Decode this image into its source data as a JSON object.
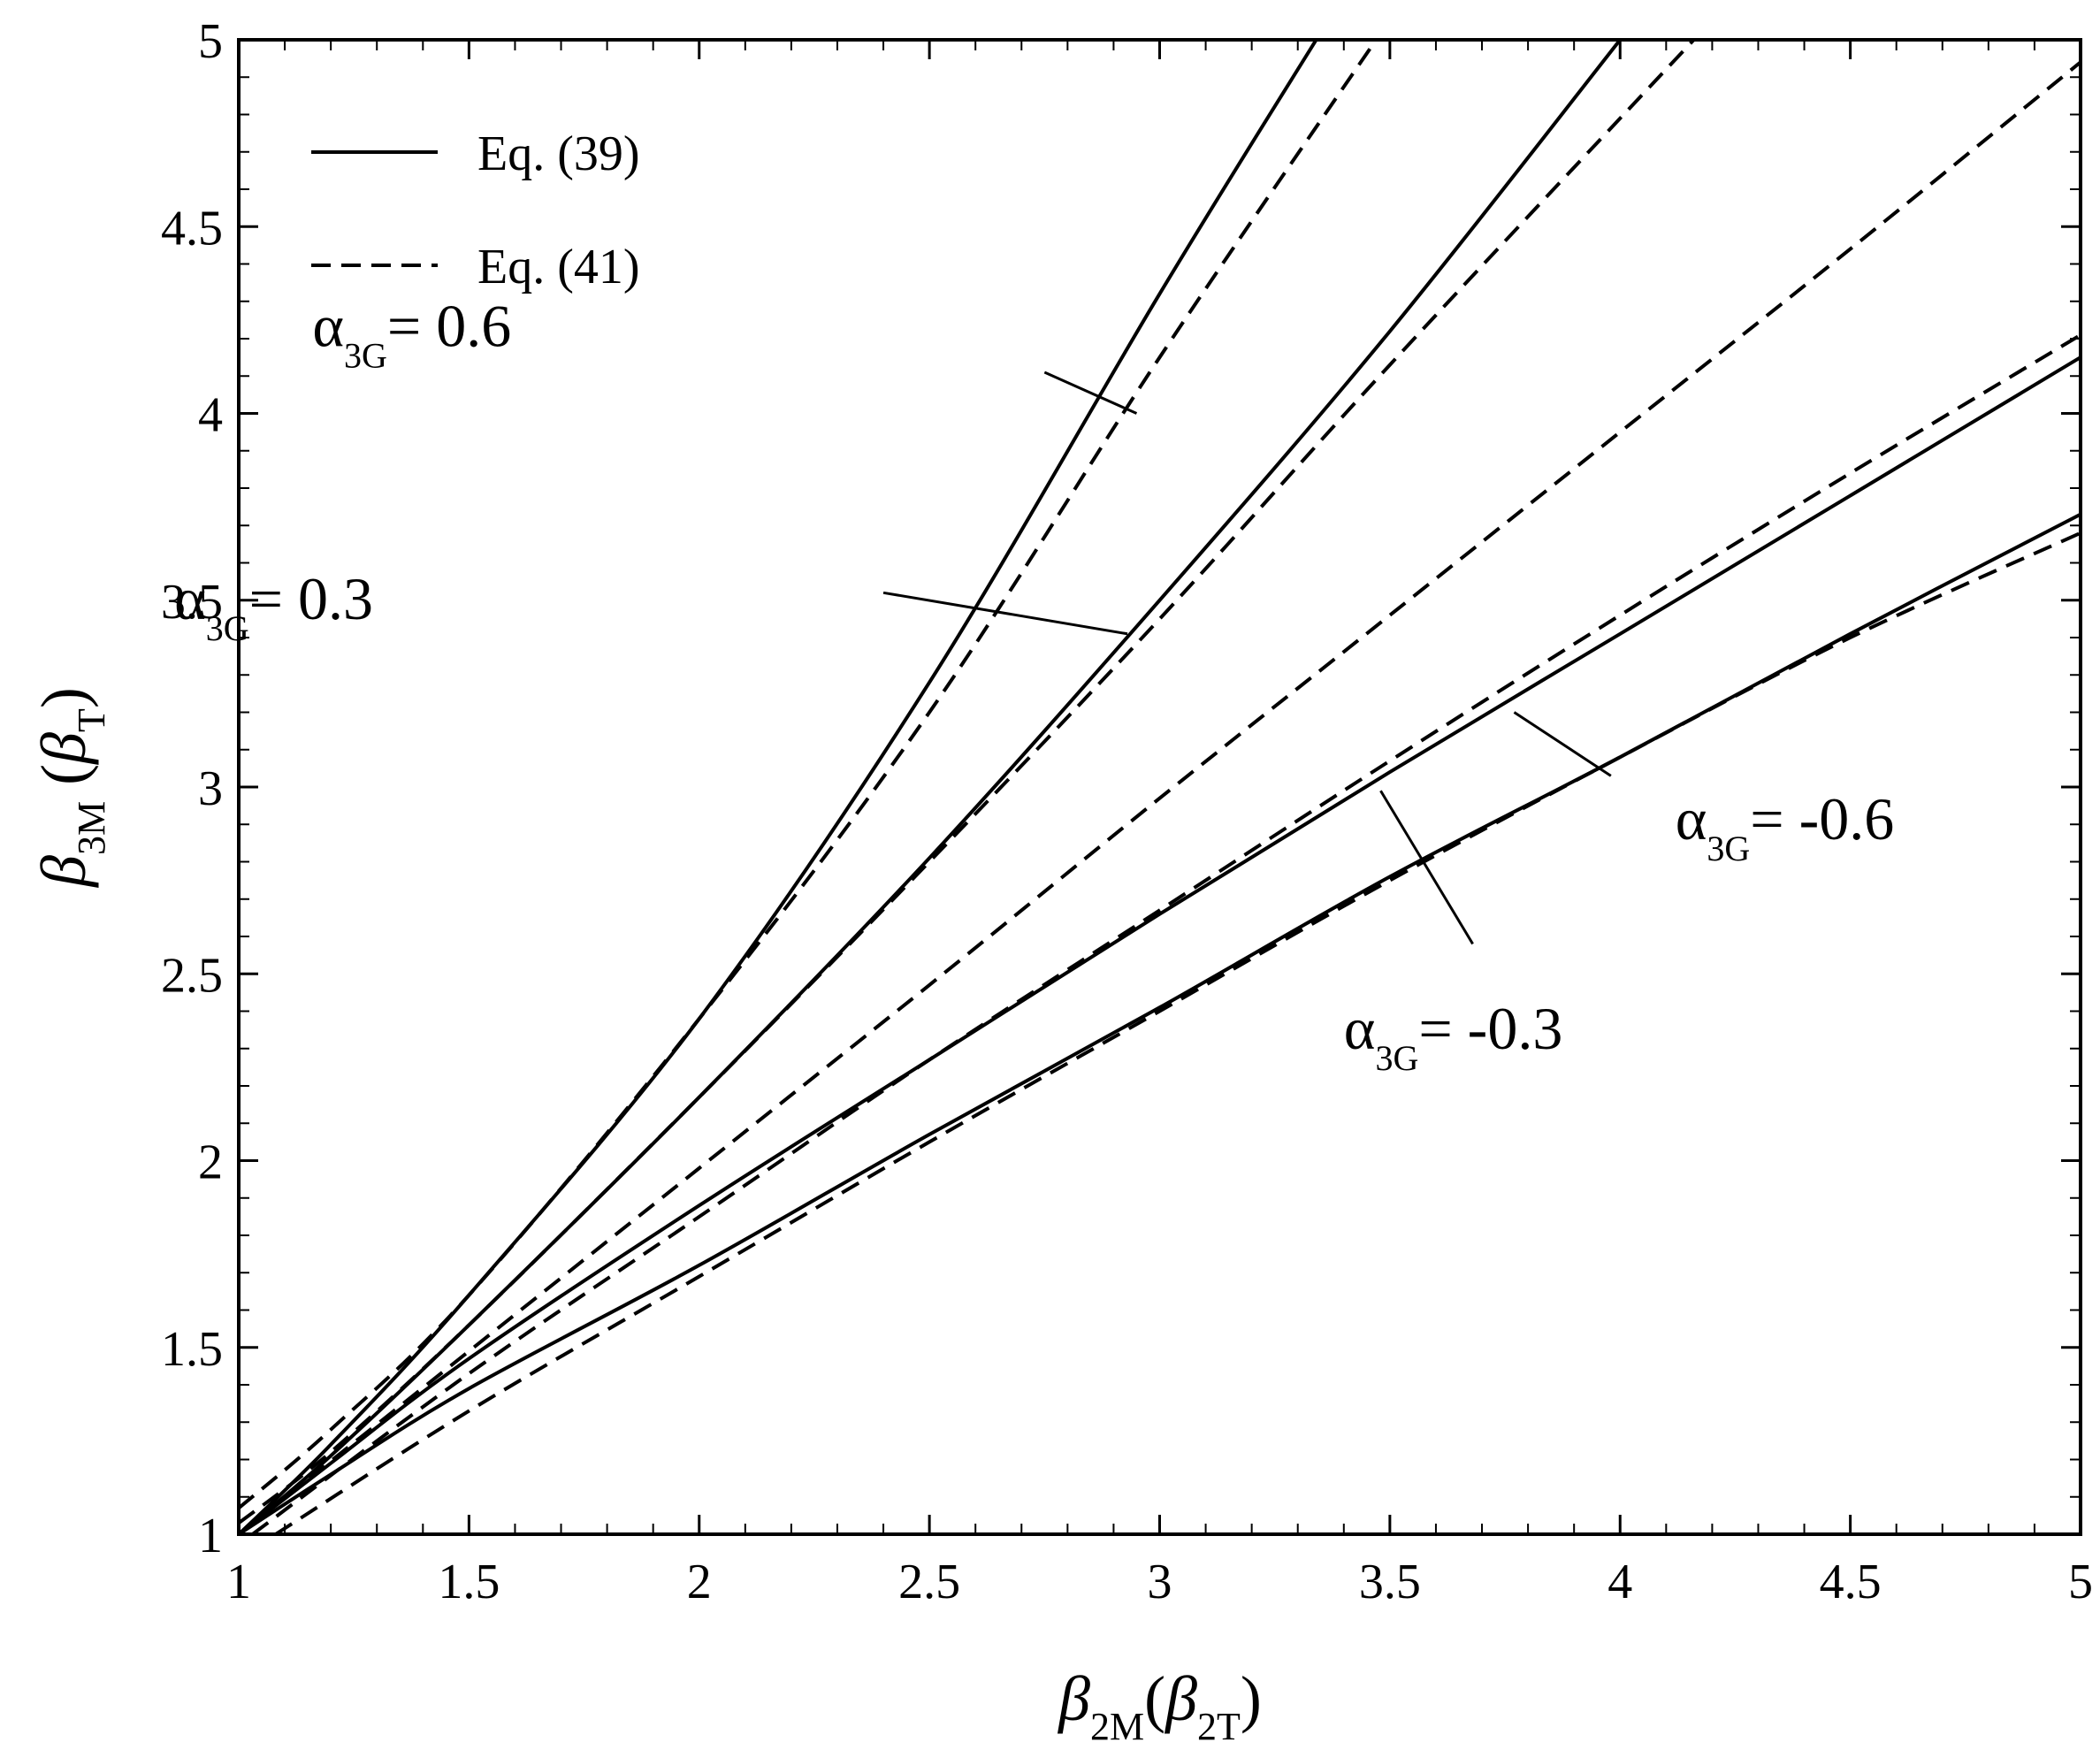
{
  "chart_data": {
    "type": "line",
    "title": "",
    "xlabel": {
      "symbol": "β",
      "sub": "2M",
      "paren_open": "(",
      "paren_symbol": "β",
      "paren_sub": "2T",
      "paren_close": ")"
    },
    "ylabel": {
      "symbol": "β",
      "sub": "3M",
      "paren_open": "(",
      "paren_symbol": "β",
      "paren_sub": "T",
      "paren_close": ")"
    },
    "xlim": [
      1,
      5
    ],
    "ylim": [
      1,
      5
    ],
    "xticks": [
      1,
      1.5,
      2,
      2.5,
      3,
      3.5,
      4,
      4.5,
      5
    ],
    "xtick_labels": [
      "1",
      "1.5",
      "2",
      "2.5",
      "3",
      "3.5",
      "4",
      "4.5",
      "5"
    ],
    "yticks": [
      1,
      1.5,
      2,
      2.5,
      3,
      3.5,
      4,
      4.5,
      5
    ],
    "ytick_labels": [
      "1",
      "1.5",
      "2",
      "2.5",
      "3",
      "3.5",
      "4",
      "4.5",
      "5"
    ],
    "grid": false,
    "legend": {
      "position": "top-left",
      "entries": [
        {
          "label": "Eq. (39)",
          "style": "solid"
        },
        {
          "label": "Eq. (41)",
          "style": "dashed"
        }
      ]
    },
    "series": [
      {
        "name": "Eq. (39), α3G = 0.6",
        "style": "solid",
        "x": [
          1.0,
          1.2,
          1.5,
          2.0,
          2.5,
          3.0,
          3.34
        ],
        "y": [
          1.0,
          1.24,
          1.64,
          2.38,
          3.28,
          4.32,
          5.0
        ]
      },
      {
        "name": "Eq. (41), α3G = 0.6",
        "style": "dashed",
        "x": [
          1.0,
          1.2,
          1.5,
          2.0,
          2.5,
          3.0,
          3.47
        ],
        "y": [
          1.07,
          1.28,
          1.64,
          2.38,
          3.2,
          4.15,
          5.0
        ]
      },
      {
        "name": "Eq. (39), α3G = 0.3",
        "style": "solid",
        "x": [
          1.0,
          1.2,
          1.5,
          2.0,
          2.5,
          3.0,
          3.5,
          4.0
        ],
        "y": [
          1.0,
          1.21,
          1.56,
          2.17,
          2.81,
          3.5,
          4.22,
          5.0
        ]
      },
      {
        "name": "Eq. (41), α3G = 0.3",
        "style": "dashed",
        "x": [
          1.0,
          1.2,
          1.5,
          2.0,
          2.5,
          3.0,
          3.5,
          4.16
        ],
        "y": [
          1.03,
          1.22,
          1.56,
          2.17,
          2.8,
          3.45,
          4.13,
          5.0
        ]
      },
      {
        "name": "Eq. (41), α3G = 0",
        "style": "dashed",
        "x": [
          1.0,
          1.5,
          2.0,
          2.5,
          3.0,
          3.5,
          4.0,
          4.5,
          5.0
        ],
        "y": [
          1.0,
          1.49,
          1.98,
          2.47,
          2.97,
          3.46,
          3.95,
          4.44,
          4.94
        ]
      },
      {
        "name": "Eq. (39), α3G = -0.3",
        "style": "solid",
        "x": [
          1.0,
          1.2,
          1.5,
          2.0,
          2.5,
          3.0,
          3.5,
          4.0,
          4.5,
          5.0
        ],
        "y": [
          1.0,
          1.19,
          1.47,
          1.88,
          2.27,
          2.66,
          3.04,
          3.41,
          3.78,
          4.15
        ]
      },
      {
        "name": "Eq. (41), α3G = -0.3",
        "style": "dashed",
        "x": [
          1.03,
          1.5,
          2.0,
          2.5,
          3.0,
          3.5,
          4.0,
          4.5,
          5.0
        ],
        "y": [
          1.0,
          1.43,
          1.85,
          2.27,
          2.67,
          3.07,
          3.46,
          3.84,
          4.21
        ]
      },
      {
        "name": "Eq. (39), α3G = -0.6",
        "style": "solid",
        "x": [
          1.0,
          1.2,
          1.5,
          2.0,
          2.5,
          3.0,
          3.5,
          4.0,
          4.5,
          5.0
        ],
        "y": [
          1.0,
          1.16,
          1.39,
          1.72,
          2.07,
          2.41,
          2.76,
          3.08,
          3.41,
          3.73
        ]
      },
      {
        "name": "Eq. (41), α3G = -0.6",
        "style": "dashed",
        "x": [
          1.08,
          1.5,
          2.0,
          2.5,
          3.0,
          3.5,
          4.0,
          4.5,
          5.0
        ],
        "y": [
          1.0,
          1.33,
          1.69,
          2.05,
          2.4,
          2.75,
          3.08,
          3.4,
          3.68
        ]
      }
    ],
    "annotations": [
      {
        "main": "α",
        "sub": "3G",
        "text": "= 0.6",
        "label_pos": [
          1.16,
          4.18
        ],
        "pointer": [
          [
            2.75,
            4.11
          ],
          [
            2.95,
            4.0
          ]
        ]
      },
      {
        "main": "α",
        "sub": "3G",
        "text": "= 0.3",
        "label_pos": [
          0.86,
          3.45
        ],
        "pointer": [
          [
            2.4,
            3.52
          ],
          [
            2.93,
            3.41
          ]
        ]
      },
      {
        "main": "α",
        "sub": "3G",
        "text": "= -0.6",
        "label_pos": [
          4.12,
          2.86
        ],
        "pointer": [
          [
            3.77,
            3.2
          ],
          [
            3.98,
            3.03
          ]
        ]
      },
      {
        "main": "α",
        "sub": "3G",
        "text": "= -0.3",
        "label_pos": [
          3.4,
          2.3
        ],
        "pointer": [
          [
            3.48,
            2.99
          ],
          [
            3.68,
            2.58
          ]
        ]
      }
    ]
  }
}
